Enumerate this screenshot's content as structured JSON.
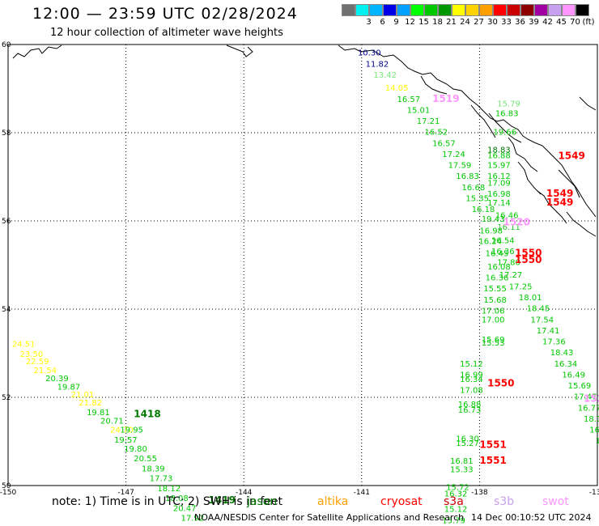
{
  "header": {
    "title": "12:00 — 23:59 UTC 02/28/2024",
    "subtitle": "12 hour collection of altimeter wave heights"
  },
  "legend": {
    "unit": "(ft)",
    "swatches": [
      {
        "color": "#707070",
        "label": ""
      },
      {
        "color": "#00f0f0",
        "label": "3"
      },
      {
        "color": "#00b4ff",
        "label": "6"
      },
      {
        "color": "#0000e6",
        "label": "9"
      },
      {
        "color": "#00a0ff",
        "label": "12"
      },
      {
        "color": "#00ff00",
        "label": "15"
      },
      {
        "color": "#00c800",
        "label": "18"
      },
      {
        "color": "#009600",
        "label": "21"
      },
      {
        "color": "#ffff00",
        "label": "24"
      },
      {
        "color": "#ffd200",
        "label": "27"
      },
      {
        "color": "#ffa000",
        "label": "30"
      },
      {
        "color": "#ff0000",
        "label": "33"
      },
      {
        "color": "#c80000",
        "label": "36"
      },
      {
        "color": "#8c0000",
        "label": "39"
      },
      {
        "color": "#a000a0",
        "label": "42"
      },
      {
        "color": "#c8a0f0",
        "label": "45"
      },
      {
        "color": "#ff96ff",
        "label": "70"
      },
      {
        "color": "#000000",
        "label": ""
      }
    ]
  },
  "axes": {
    "lat_labels": [
      "60",
      "58",
      "56",
      "54",
      "52",
      "50"
    ],
    "lon_labels": [
      "-150",
      "-147",
      "-144",
      "-141",
      "-138",
      "-135"
    ]
  },
  "colors": {
    "cryosat": "#ff0000",
    "jason": "#007800",
    "saral": "#00c800",
    "altika": "#ffa000",
    "s3a": "#c80000",
    "s3b": "#c8a0f0",
    "swot": "#ff96ff",
    "yellow": "#ffff00",
    "navy": "#00008c",
    "lime": "#78e678",
    "mid": "#30c030"
  },
  "observations": [
    {
      "lon": -141.1,
      "lat": 59.75,
      "text": "10.30",
      "c": "navy"
    },
    {
      "lon": -140.9,
      "lat": 59.5,
      "text": "11.82",
      "c": "navy"
    },
    {
      "lon": -140.7,
      "lat": 59.25,
      "text": "13.42",
      "c": "lime"
    },
    {
      "lon": -140.4,
      "lat": 58.95,
      "text": "14.05",
      "c": "yellow"
    },
    {
      "lon": -140.1,
      "lat": 58.7,
      "text": "16.57",
      "c": "saral"
    },
    {
      "lon": -139.85,
      "lat": 58.45,
      "text": "15.01",
      "c": "saral"
    },
    {
      "lon": -139.6,
      "lat": 58.2,
      "text": "17.21",
      "c": "saral"
    },
    {
      "lon": -139.4,
      "lat": 57.95,
      "text": "16.52",
      "c": "saral"
    },
    {
      "lon": -139.2,
      "lat": 57.7,
      "text": "16.57",
      "c": "saral"
    },
    {
      "lon": -138.95,
      "lat": 57.45,
      "text": "17.24",
      "c": "saral"
    },
    {
      "lon": -138.8,
      "lat": 57.2,
      "text": "17.59",
      "c": "saral"
    },
    {
      "lon": -138.6,
      "lat": 56.95,
      "text": "16.83",
      "c": "saral"
    },
    {
      "lon": -138.45,
      "lat": 56.7,
      "text": "16.68",
      "c": "saral"
    },
    {
      "lon": -138.35,
      "lat": 56.45,
      "text": "15.35",
      "c": "saral"
    },
    {
      "lon": -138.2,
      "lat": 56.2,
      "text": "16.18",
      "c": "saral"
    },
    {
      "lon": -137.95,
      "lat": 55.98,
      "text": "19.43",
      "c": "saral"
    },
    {
      "lon": -138.0,
      "lat": 55.72,
      "text": "16.98",
      "c": "saral"
    },
    {
      "lon": -138.02,
      "lat": 55.48,
      "text": "16.24",
      "c": "saral"
    },
    {
      "lon": -137.85,
      "lat": 55.2,
      "text": "16.45",
      "c": "saral"
    },
    {
      "lon": -137.8,
      "lat": 54.9,
      "text": "16.08",
      "c": "saral"
    },
    {
      "lon": -137.85,
      "lat": 54.65,
      "text": "16.36",
      "c": "saral"
    },
    {
      "lon": -137.9,
      "lat": 54.4,
      "text": "15.55",
      "c": "saral"
    },
    {
      "lon": -137.9,
      "lat": 54.15,
      "text": "15.68",
      "c": "saral"
    },
    {
      "lon": -137.95,
      "lat": 53.9,
      "text": "17.06",
      "c": "saral"
    },
    {
      "lon": -137.95,
      "lat": 53.7,
      "text": "17.00",
      "c": "saral"
    },
    {
      "lon": -137.95,
      "lat": 53.25,
      "text": "15.69",
      "c": "saral"
    },
    {
      "lon": -137.95,
      "lat": 53.17,
      "text": "15.53",
      "c": "saral"
    },
    {
      "lon": -138.5,
      "lat": 52.7,
      "text": "15.12",
      "c": "saral"
    },
    {
      "lon": -138.5,
      "lat": 52.45,
      "text": "16.99",
      "c": "saral"
    },
    {
      "lon": -138.5,
      "lat": 52.35,
      "text": "16.34",
      "c": "saral"
    },
    {
      "lon": -138.5,
      "lat": 52.1,
      "text": "17.08",
      "c": "saral"
    },
    {
      "lon": -138.55,
      "lat": 51.78,
      "text": "16.88",
      "c": "saral"
    },
    {
      "lon": -138.55,
      "lat": 51.65,
      "text": "16.73",
      "c": "saral"
    },
    {
      "lon": -138.6,
      "lat": 51.0,
      "text": "16.30",
      "c": "saral"
    },
    {
      "lon": -138.6,
      "lat": 50.9,
      "text": "15.27",
      "c": "saral"
    },
    {
      "lon": -138.75,
      "lat": 50.5,
      "text": "16.81",
      "c": "saral"
    },
    {
      "lon": -138.75,
      "lat": 50.3,
      "text": "15.33",
      "c": "saral"
    },
    {
      "lon": -138.85,
      "lat": 49.9,
      "text": "15.72",
      "c": "saral"
    },
    {
      "lon": -138.9,
      "lat": 49.75,
      "text": "16.32",
      "c": "saral"
    },
    {
      "lon": -138.9,
      "lat": 49.4,
      "text": "15.12",
      "c": "saral"
    },
    {
      "lon": -138.95,
      "lat": 49.15,
      "text": "15.79",
      "c": "saral"
    },
    {
      "lon": -138.95,
      "lat": 48.9,
      "text": "16.87",
      "c": "saral"
    },
    {
      "lon": -137.55,
      "lat": 58.6,
      "text": "15.79",
      "c": "lime"
    },
    {
      "lon": -137.6,
      "lat": 58.38,
      "text": "16.83",
      "c": "saral"
    },
    {
      "lon": -137.65,
      "lat": 57.95,
      "text": "19.66",
      "c": "saral"
    },
    {
      "lon": -137.8,
      "lat": 57.55,
      "text": "18.83",
      "c": "jason"
    },
    {
      "lon": -137.8,
      "lat": 57.42,
      "text": "16.88",
      "c": "saral"
    },
    {
      "lon": -137.8,
      "lat": 57.2,
      "text": "15.97",
      "c": "saral"
    },
    {
      "lon": -137.8,
      "lat": 56.95,
      "text": "16.12",
      "c": "saral"
    },
    {
      "lon": -137.8,
      "lat": 56.8,
      "text": "17.09",
      "c": "saral"
    },
    {
      "lon": -137.8,
      "lat": 56.55,
      "text": "16.98",
      "c": "saral"
    },
    {
      "lon": -137.8,
      "lat": 56.35,
      "text": "17.14",
      "c": "saral"
    },
    {
      "lon": -137.6,
      "lat": 56.06,
      "text": "16.46",
      "c": "saral"
    },
    {
      "lon": -137.55,
      "lat": 55.8,
      "text": "16.11",
      "c": "mid"
    },
    {
      "lon": -137.7,
      "lat": 55.5,
      "text": "16.54",
      "c": "saral"
    },
    {
      "lon": -137.7,
      "lat": 55.25,
      "text": "16.36",
      "c": "saral"
    },
    {
      "lon": -137.55,
      "lat": 55.0,
      "text": "17.80",
      "c": "saral"
    },
    {
      "lon": -137.5,
      "lat": 54.72,
      "text": "17.27",
      "c": "saral"
    },
    {
      "lon": -137.25,
      "lat": 54.45,
      "text": "17.25",
      "c": "saral"
    },
    {
      "lon": -137.0,
      "lat": 54.2,
      "text": "18.01",
      "c": "saral"
    },
    {
      "lon": -136.8,
      "lat": 53.95,
      "text": "18.45",
      "c": "saral"
    },
    {
      "lon": -136.7,
      "lat": 53.7,
      "text": "17.54",
      "c": "saral"
    },
    {
      "lon": -136.55,
      "lat": 53.45,
      "text": "17.41",
      "c": "saral"
    },
    {
      "lon": -136.4,
      "lat": 53.2,
      "text": "17.36",
      "c": "saral"
    },
    {
      "lon": -136.2,
      "lat": 52.95,
      "text": "18.43",
      "c": "saral"
    },
    {
      "lon": -136.1,
      "lat": 52.7,
      "text": "16.34",
      "c": "saral"
    },
    {
      "lon": -135.9,
      "lat": 52.45,
      "text": "16.49",
      "c": "saral"
    },
    {
      "lon": -135.75,
      "lat": 52.2,
      "text": "15.69",
      "c": "saral"
    },
    {
      "lon": -135.6,
      "lat": 51.95,
      "text": "17.47",
      "c": "saral"
    },
    {
      "lon": -135.5,
      "lat": 51.7,
      "text": "16.77",
      "c": "saral"
    },
    {
      "lon": -135.35,
      "lat": 51.45,
      "text": "18.10",
      "c": "saral"
    },
    {
      "lon": -135.2,
      "lat": 51.2,
      "text": "16.90",
      "c": "saral"
    },
    {
      "lon": -135.05,
      "lat": 50.95,
      "text": "17.73",
      "c": "saral"
    },
    {
      "lon": -134.85,
      "lat": 50.7,
      "text": "16.96",
      "c": "saral"
    },
    {
      "lon": -134.75,
      "lat": 50.45,
      "text": "17.32",
      "c": "saral"
    },
    {
      "lon": -134.6,
      "lat": 50.2,
      "text": "16.3",
      "c": "saral"
    },
    {
      "lon": -134.45,
      "lat": 49.95,
      "text": "16.",
      "c": "saral"
    },
    {
      "lon": -149.9,
      "lat": 53.15,
      "text": "24.51",
      "c": "yellow"
    },
    {
      "lon": -149.7,
      "lat": 52.92,
      "text": "23.50",
      "c": "yellow"
    },
    {
      "lon": -149.55,
      "lat": 52.75,
      "text": "22.59",
      "c": "yellow"
    },
    {
      "lon": -149.35,
      "lat": 52.55,
      "text": "21.54",
      "c": "yellow"
    },
    {
      "lon": -149.05,
      "lat": 52.37,
      "text": "20.39",
      "c": "saral"
    },
    {
      "lon": -148.75,
      "lat": 52.17,
      "text": "19.87",
      "c": "saral"
    },
    {
      "lon": -148.4,
      "lat": 52.0,
      "text": "21.01",
      "c": "yellow"
    },
    {
      "lon": -148.2,
      "lat": 51.82,
      "text": "21.82",
      "c": "yellow"
    },
    {
      "lon": -148.0,
      "lat": 51.6,
      "text": "19.81",
      "c": "saral"
    },
    {
      "lon": -147.65,
      "lat": 51.4,
      "text": "20.71",
      "c": "saral"
    },
    {
      "lon": -147.4,
      "lat": 51.2,
      "text": "24.70",
      "c": "yellow"
    },
    {
      "lon": -147.15,
      "lat": 51.2,
      "text": "19.95",
      "c": "saral"
    },
    {
      "lon": -147.3,
      "lat": 50.97,
      "text": "19.57",
      "c": "saral"
    },
    {
      "lon": -147.05,
      "lat": 50.77,
      "text": "19.80",
      "c": "saral"
    },
    {
      "lon": -146.8,
      "lat": 50.55,
      "text": "20.55",
      "c": "saral"
    },
    {
      "lon": -146.6,
      "lat": 50.32,
      "text": "18.39",
      "c": "saral"
    },
    {
      "lon": -146.4,
      "lat": 50.1,
      "text": "17.73",
      "c": "saral"
    },
    {
      "lon": -146.2,
      "lat": 49.87,
      "text": "18.12",
      "c": "saral"
    },
    {
      "lon": -146.0,
      "lat": 49.65,
      "text": "18.08",
      "c": "saral"
    },
    {
      "lon": -145.8,
      "lat": 49.42,
      "text": "20.47",
      "c": "saral"
    },
    {
      "lon": -145.6,
      "lat": 49.2,
      "text": "17.92",
      "c": "saral"
    }
  ],
  "passes": [
    {
      "lon": -139.2,
      "lat": 58.7,
      "text": "1519",
      "c": "swot"
    },
    {
      "lon": -136.0,
      "lat": 57.4,
      "text": "1549",
      "c": "cryosat"
    },
    {
      "lon": -136.3,
      "lat": 56.55,
      "text": "1549",
      "c": "cryosat"
    },
    {
      "lon": -136.3,
      "lat": 56.35,
      "text": "1549",
      "c": "cryosat"
    },
    {
      "lon": -137.4,
      "lat": 55.9,
      "text": "1520",
      "c": "swot"
    },
    {
      "lon": -137.1,
      "lat": 55.2,
      "text": "1550",
      "c": "cryosat"
    },
    {
      "lon": -137.1,
      "lat": 55.05,
      "text": "1550",
      "c": "cryosat"
    },
    {
      "lon": -137.8,
      "lat": 52.25,
      "text": "1550",
      "c": "cryosat"
    },
    {
      "lon": -135.35,
      "lat": 51.9,
      "text": "1521",
      "c": "swot"
    },
    {
      "lon": -138.0,
      "lat": 50.85,
      "text": "1551",
      "c": "cryosat"
    },
    {
      "lon": -138.0,
      "lat": 50.5,
      "text": "1551",
      "c": "cryosat"
    },
    {
      "lon": -146.8,
      "lat": 51.55,
      "text": "1418",
      "c": "jason"
    },
    {
      "lon": -144.9,
      "lat": 49.6,
      "text": "1419",
      "c": "jason"
    }
  ],
  "footer": {
    "note": "note: 1) Time is in UTC; 2) SWH is in feet",
    "satellites": [
      {
        "name": "jason",
        "c": "jason"
      },
      {
        "name": "altika",
        "c": "altika"
      },
      {
        "name": "cryosat",
        "c": "cryosat"
      },
      {
        "name": "s3a",
        "c": "s3a"
      },
      {
        "name": "s3b",
        "c": "s3b"
      },
      {
        "name": "swot",
        "c": "swot"
      }
    ],
    "credit": "NOAA/NESDIS Center for Satellite Applications and Research",
    "timestamp": "14 Dec 00:10:52 UTC 2024"
  }
}
